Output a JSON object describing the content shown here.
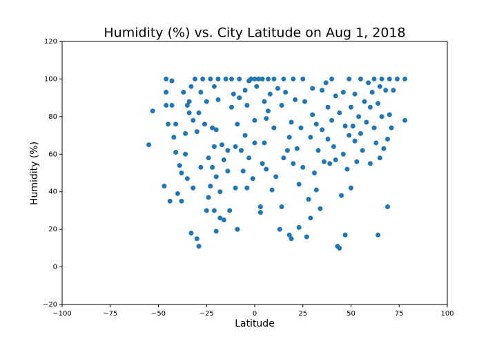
{
  "chart_data": {
    "type": "scatter",
    "title": "Humidity (%) vs. City Latitude on Aug 1, 2018",
    "x_label": "Latitude",
    "y_label": "Humidity (%)",
    "color": "#1f77b4",
    "xlim": [
      -100,
      100
    ],
    "ylim": [
      -20,
      120
    ],
    "xticks": [
      {
        "value": -100,
        "label": "−100"
      },
      {
        "value": -75,
        "label": "−75"
      },
      {
        "value": -50,
        "label": "−50"
      },
      {
        "value": -25,
        "label": "−25"
      },
      0,
      25,
      50,
      75,
      100
    ],
    "yticks": [
      {
        "value": -20,
        "label": "−20"
      },
      0,
      20,
      40,
      60,
      80,
      100,
      120
    ],
    "x": [
      -55,
      -53,
      -46,
      -46,
      -46,
      -45,
      -47,
      -44,
      -43,
      -43,
      -42,
      -41,
      -41,
      -40,
      -39,
      -38,
      -38,
      -37,
      -36,
      -36,
      -35,
      -35,
      -34,
      -34,
      -33,
      -33,
      -32,
      -32,
      -31,
      -30,
      -30,
      -29,
      -29,
      -28,
      -28,
      -27,
      -26,
      -25,
      -25,
      -24,
      -24,
      -23,
      -23,
      -22,
      -22,
      -21,
      -21,
      -21,
      -20,
      -20,
      -20,
      -19,
      -19,
      -18,
      -18,
      -17,
      -16,
      -16,
      -15,
      -14,
      -14,
      -13,
      -12,
      -12,
      -11,
      -10,
      -10,
      -9,
      -9,
      -8,
      -8,
      -7,
      -6,
      -5,
      -5,
      -4,
      -4,
      -3,
      -3,
      -2,
      -1,
      0,
      0,
      0,
      1,
      2,
      3,
      3,
      4,
      4,
      5,
      5,
      6,
      6,
      7,
      7,
      8,
      9,
      10,
      10,
      11,
      12,
      13,
      14,
      14,
      15,
      15,
      16,
      17,
      18,
      18,
      19,
      19,
      20,
      20,
      21,
      22,
      23,
      23,
      24,
      25,
      25,
      26,
      27,
      28,
      29,
      29,
      30,
      30,
      31,
      32,
      32,
      33,
      34,
      35,
      35,
      36,
      37,
      38,
      38,
      39,
      40,
      40,
      41,
      42,
      42,
      43,
      44,
      44,
      45,
      46,
      46,
      47,
      47,
      48,
      49,
      49,
      50,
      50,
      51,
      52,
      52,
      53,
      54,
      55,
      55,
      56,
      57,
      58,
      59,
      60,
      60,
      61,
      62,
      62,
      63,
      64,
      64,
      65,
      65,
      66,
      66,
      67,
      68,
      69,
      69,
      70,
      70,
      71,
      72,
      74,
      78,
      78
    ],
    "values": [
      65,
      83,
      100,
      93,
      86,
      76,
      43,
      35,
      99,
      86,
      69,
      76,
      61,
      39,
      54,
      50,
      35,
      93,
      71,
      60,
      47,
      86,
      88,
      82,
      96,
      18,
      78,
      42,
      100,
      15,
      72,
      11,
      82,
      93,
      53,
      100,
      76,
      30,
      88,
      58,
      37,
      100,
      43,
      74,
      53,
      96,
      64,
      30,
      19,
      73,
      48,
      100,
      89,
      26,
      40,
      65,
      25,
      57,
      100,
      62,
      51,
      30,
      100,
      85,
      92,
      42,
      64,
      76,
      20,
      100,
      90,
      62,
      51,
      94,
      70,
      86,
      42,
      58,
      99,
      100,
      47,
      100,
      78,
      66,
      96,
      100,
      32,
      29,
      55,
      100,
      88,
      66,
      79,
      52,
      100,
      83,
      92,
      41,
      74,
      100,
      48,
      95,
      20,
      32,
      86,
      58,
      100,
      93,
      62,
      69,
      17,
      15,
      77,
      100,
      55,
      89,
      63,
      44,
      21,
      74,
      100,
      53,
      88,
      16,
      36,
      26,
      69,
      81,
      95,
      50,
      76,
      41,
      62,
      31,
      94,
      73,
      56,
      98,
      68,
      85,
      55,
      78,
      100,
      64,
      91,
      57,
      11,
      10,
      82,
      38,
      93,
      60,
      75,
      17,
      52,
      100,
      70,
      42,
      85,
      75,
      67,
      92,
      56,
      80,
      100,
      71,
      62,
      88,
      77,
      98,
      55,
      85,
      93,
      100,
      74,
      66,
      87,
      17,
      96,
      58,
      100,
      80,
      63,
      94,
      32,
      68,
      100,
      81,
      74,
      94,
      100,
      100,
      78
    ]
  }
}
